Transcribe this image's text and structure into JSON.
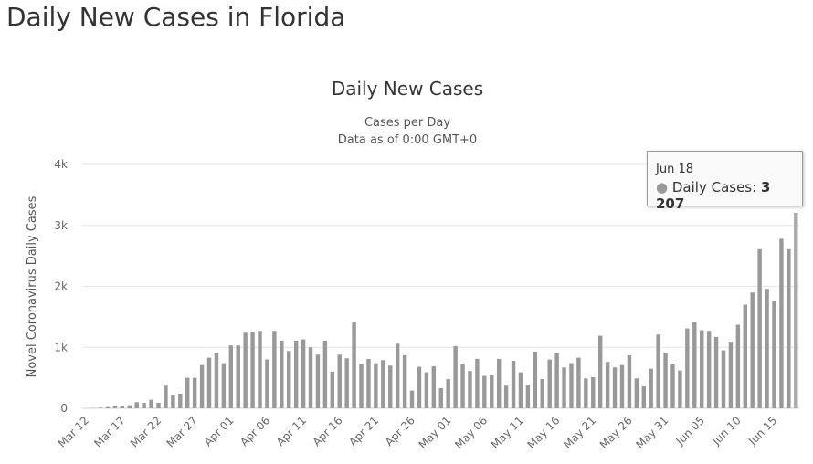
{
  "page_title": "Daily New Cases in Florida",
  "chart_data": {
    "type": "bar",
    "title": "Daily New Cases",
    "subtitle": [
      "Cases per Day",
      "Data as of 0:00 GMT+0"
    ],
    "ylabel": "Novel Coronavirus Daily Cases",
    "xlabel": "",
    "ylim": [
      0,
      4000
    ],
    "yticks": [
      "0",
      "1k",
      "2k",
      "3k",
      "4k"
    ],
    "start_date": "Mar 12",
    "end_date": "Jun 18",
    "xtick_labels": [
      "Mar 12",
      "Mar 17",
      "Mar 22",
      "Mar 27",
      "Apr 01",
      "Apr 06",
      "Apr 11",
      "Apr 16",
      "Apr 21",
      "Apr 26",
      "May 01",
      "May 06",
      "May 11",
      "May 16",
      "May 21",
      "May 26",
      "May 31",
      "Jun 05",
      "Jun 10",
      "Jun 15"
    ],
    "series": [
      {
        "name": "Daily Cases",
        "color": "#999999",
        "values": [
          0,
          5,
          10,
          20,
          30,
          35,
          50,
          100,
          90,
          140,
          90,
          370,
          220,
          240,
          500,
          500,
          710,
          830,
          910,
          740,
          1030,
          1030,
          1240,
          1250,
          1270,
          800,
          1270,
          1110,
          940,
          1110,
          1130,
          1000,
          880,
          1110,
          600,
          880,
          820,
          1410,
          720,
          810,
          740,
          790,
          700,
          1060,
          870,
          290,
          680,
          590,
          690,
          330,
          480,
          1020,
          720,
          610,
          810,
          530,
          540,
          810,
          370,
          780,
          590,
          390,
          930,
          480,
          800,
          900,
          670,
          740,
          830,
          490,
          510,
          1190,
          760,
          670,
          710,
          870,
          490,
          360,
          650,
          1210,
          910,
          720,
          620,
          1310,
          1420,
          1280,
          1270,
          1170,
          950,
          1090,
          1370,
          1700,
          1900,
          2610,
          1960,
          1760,
          2780,
          2610,
          3207
        ]
      }
    ],
    "grid": true,
    "legend": "none",
    "tooltip": {
      "date": "Jun 18",
      "label": "Daily Cases:",
      "value": "3 207"
    }
  }
}
